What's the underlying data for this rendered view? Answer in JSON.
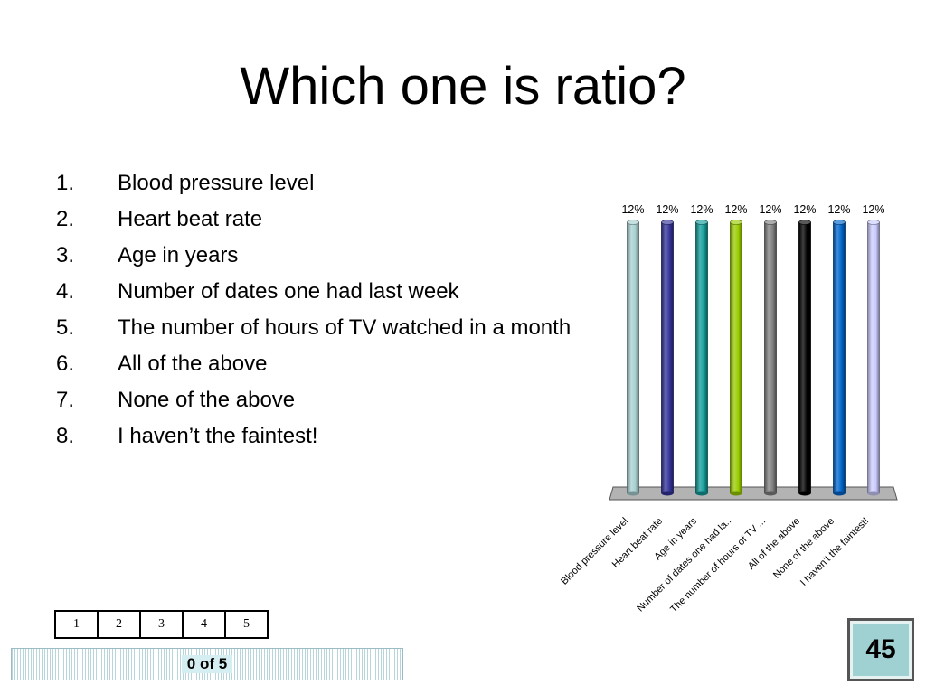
{
  "slide": {
    "title": "Which one is ratio?"
  },
  "options": [
    {
      "num": "1.",
      "text": "Blood pressure level"
    },
    {
      "num": "2.",
      "text": "Heart beat rate"
    },
    {
      "num": "3.",
      "text": "Age in years"
    },
    {
      "num": "4.",
      "text": "Number of dates one had last week"
    },
    {
      "num": "5.",
      "text": "The number of hours of TV watched in a month"
    },
    {
      "num": "6.",
      "text": "All of the above"
    },
    {
      "num": "7.",
      "text": "None of the above"
    },
    {
      "num": "8.",
      "text": "I haven’t the faintest!"
    }
  ],
  "chart_data": {
    "type": "bar",
    "categories": [
      "Blood pressure level",
      "Heart beat rate",
      "Age in years",
      "Number of dates one had la..",
      "The number of hours of TV ...",
      "All of the above",
      "None of the above",
      "I haven’t the faintest!"
    ],
    "values": [
      12,
      12,
      12,
      12,
      12,
      12,
      12,
      12
    ],
    "value_labels": [
      "12%",
      "12%",
      "12%",
      "12%",
      "12%",
      "12%",
      "12%",
      "12%"
    ],
    "bar_colors": [
      "#a8d0d0",
      "#34349a",
      "#119c9a",
      "#99cc00",
      "#808080",
      "#000000",
      "#0066cc",
      "#ccccff"
    ],
    "ylim": [
      0,
      12
    ],
    "grid": false,
    "legend": "none"
  },
  "answer_grid": [
    "1",
    "2",
    "3",
    "4",
    "5"
  ],
  "response": {
    "count_label": "0 of 5"
  },
  "timer": {
    "value": "45",
    "bg_color": "#9fd0d2"
  }
}
